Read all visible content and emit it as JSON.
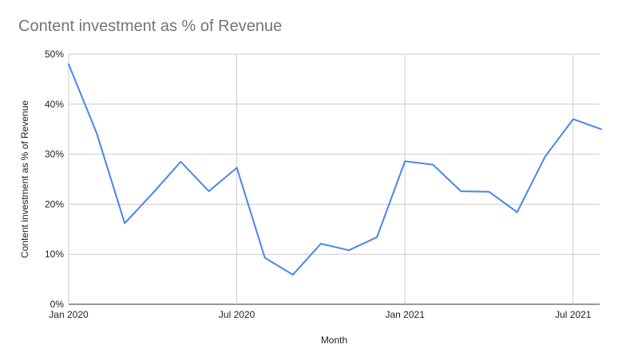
{
  "chart_data": {
    "type": "line",
    "title": "Content investment as % of Revenue",
    "xlabel": "Month",
    "ylabel": "Content investment as % of Revenue",
    "x_ticks": [
      {
        "label": "Jan 2020",
        "month_index": 0
      },
      {
        "label": "Jul 2020",
        "month_index": 6
      },
      {
        "label": "Jan 2021",
        "month_index": 12
      },
      {
        "label": "Jul 2021",
        "month_index": 18
      }
    ],
    "y_ticks": [
      "0%",
      "10%",
      "20%",
      "30%",
      "40%",
      "50%"
    ],
    "ylim": [
      0,
      50
    ],
    "x_range": [
      "Jan 2020",
      "Aug 2021"
    ],
    "grid": true,
    "line_color": "#4a86e8",
    "series": [
      {
        "name": "",
        "x": [
          "Jan 2020",
          "Feb 2020",
          "Mar 2020",
          "Apr 2020",
          "May 2020",
          "Jun 2020",
          "Jul 2020",
          "Aug 2020",
          "Sep 2020",
          "Oct 2020",
          "Nov 2020",
          "Dec 2020",
          "Jan 2021",
          "Feb 2021",
          "Mar 2021",
          "Apr 2021",
          "May 2021",
          "Jun 2021",
          "Jul 2021",
          "Aug 2021"
        ],
        "values": [
          48.0,
          34.2,
          16.2,
          22.2,
          28.5,
          22.6,
          27.3,
          9.3,
          5.9,
          12.1,
          10.8,
          13.4,
          28.6,
          27.9,
          22.6,
          22.5,
          18.4,
          29.5,
          37.0,
          35.0
        ]
      }
    ]
  }
}
